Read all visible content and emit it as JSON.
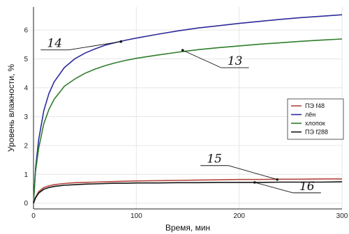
{
  "chart_data": {
    "type": "line",
    "title": "",
    "xlabel": "Время, мин",
    "ylabel": "Уровень влажности, %",
    "xlim": [
      0,
      300
    ],
    "ylim": [
      -0.2,
      6.8
    ],
    "xticks": [
      "0",
      "100",
      "200",
      "300"
    ],
    "yticks": [
      "0",
      "1",
      "2",
      "3",
      "4",
      "5",
      "6"
    ],
    "grid": true,
    "legend_position": "right",
    "x": [
      0,
      2,
      5,
      10,
      15,
      20,
      30,
      40,
      50,
      60,
      70,
      80,
      90,
      100,
      120,
      140,
      160,
      180,
      200,
      220,
      240,
      260,
      280,
      300
    ],
    "series": [
      {
        "name": "ПЭ f48",
        "color": "#b5453e",
        "values": [
          0,
          0.2,
          0.4,
          0.54,
          0.6,
          0.64,
          0.68,
          0.71,
          0.72,
          0.73,
          0.74,
          0.75,
          0.76,
          0.77,
          0.78,
          0.79,
          0.8,
          0.81,
          0.82,
          0.82,
          0.83,
          0.83,
          0.84,
          0.84
        ]
      },
      {
        "name": "лён",
        "color": "#2c2a9b",
        "values": [
          0,
          1.2,
          2.2,
          3.2,
          3.8,
          4.2,
          4.7,
          5.0,
          5.2,
          5.35,
          5.48,
          5.57,
          5.65,
          5.72,
          5.85,
          5.97,
          6.07,
          6.15,
          6.23,
          6.3,
          6.37,
          6.43,
          6.48,
          6.53
        ]
      },
      {
        "name": "хлопок",
        "color": "#2e7d2c",
        "values": [
          0,
          1.1,
          1.9,
          2.75,
          3.25,
          3.6,
          4.05,
          4.3,
          4.5,
          4.65,
          4.77,
          4.87,
          4.95,
          5.02,
          5.13,
          5.23,
          5.32,
          5.39,
          5.45,
          5.51,
          5.56,
          5.61,
          5.65,
          5.69
        ]
      },
      {
        "name": "ПЭ f288",
        "color": "#141414",
        "values": [
          0,
          0.18,
          0.35,
          0.48,
          0.54,
          0.58,
          0.62,
          0.64,
          0.66,
          0.67,
          0.68,
          0.69,
          0.69,
          0.7,
          0.7,
          0.71,
          0.71,
          0.72,
          0.72,
          0.72,
          0.73,
          0.73,
          0.73,
          0.74
        ]
      }
    ],
    "annotations": [
      {
        "text": "14",
        "series": "лён",
        "x": 85,
        "y": 5.6
      },
      {
        "text": "13",
        "series": "хлопок",
        "x": 145,
        "y": 5.3
      },
      {
        "text": "15",
        "series": "ПЭ f48",
        "x": 237,
        "y": 0.82
      },
      {
        "text": "16",
        "series": "ПЭ f288",
        "x": 215,
        "y": 0.72
      }
    ]
  }
}
